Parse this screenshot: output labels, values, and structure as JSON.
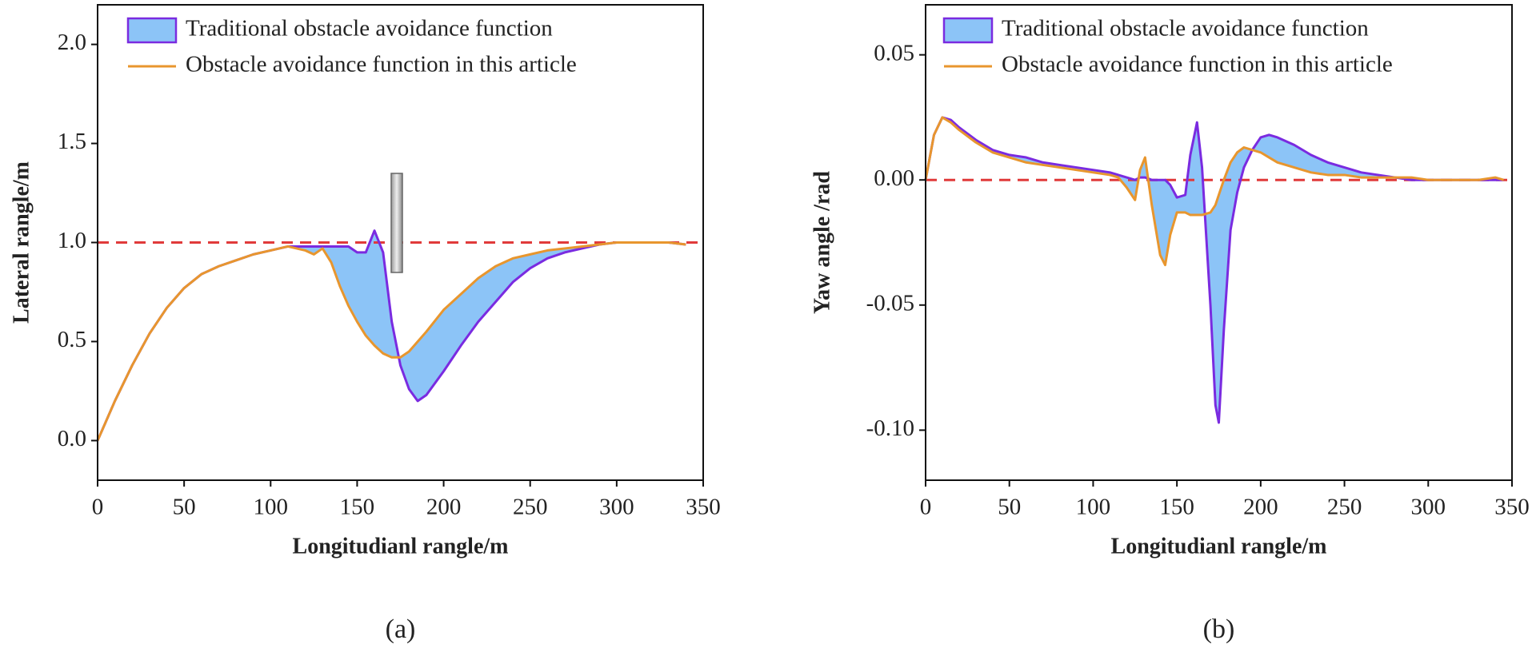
{
  "chart_data": [
    {
      "type": "line",
      "caption": "(a)",
      "xlabel": "Longitudianl rangle/m",
      "ylabel": "Lateral rangle/m",
      "x": [
        0,
        10,
        20,
        30,
        40,
        50,
        60,
        70,
        80,
        90,
        100,
        110,
        120,
        125,
        130,
        135,
        140,
        145,
        150,
        155,
        160,
        165,
        170,
        175,
        180,
        185,
        190,
        200,
        210,
        220,
        230,
        240,
        250,
        260,
        270,
        280,
        290,
        300,
        310,
        320,
        330,
        340
      ],
      "series": [
        {
          "name": "Traditional obstacle avoidance function",
          "color": "#7a2be0",
          "fill": "#8cc4f7",
          "values": [
            0,
            0.2,
            0.38,
            0.54,
            0.67,
            0.77,
            0.84,
            0.88,
            0.91,
            0.94,
            0.96,
            0.98,
            0.98,
            0.98,
            0.98,
            0.98,
            0.98,
            0.98,
            0.95,
            0.95,
            1.06,
            0.95,
            0.6,
            0.38,
            0.26,
            0.2,
            0.23,
            0.35,
            0.48,
            0.6,
            0.7,
            0.8,
            0.87,
            0.92,
            0.95,
            0.97,
            0.99,
            1.0,
            1.0,
            1.0,
            1.0,
            0.99
          ]
        },
        {
          "name": "Obstacle avoidance function in this article",
          "color": "#e8962e",
          "values": [
            0,
            0.2,
            0.38,
            0.54,
            0.67,
            0.77,
            0.84,
            0.88,
            0.91,
            0.94,
            0.96,
            0.98,
            0.96,
            0.94,
            0.97,
            0.9,
            0.78,
            0.68,
            0.6,
            0.53,
            0.48,
            0.44,
            0.42,
            0.42,
            0.45,
            0.5,
            0.55,
            0.66,
            0.74,
            0.82,
            0.88,
            0.92,
            0.94,
            0.96,
            0.97,
            0.98,
            0.99,
            1.0,
            1.0,
            1.0,
            1.0,
            0.99
          ]
        }
      ],
      "reference_line": 1,
      "reference_color": "#e03a3a",
      "fill_between": true,
      "xlim": [
        0,
        350
      ],
      "xticks": [
        0,
        50,
        100,
        150,
        200,
        250,
        300,
        350
      ],
      "ylim": [
        -0.2,
        2.2
      ],
      "yticks": [
        {
          "value": 0,
          "label": "0.0"
        },
        0.5,
        {
          "value": 1,
          "label": "1.0"
        },
        1.5,
        {
          "value": 2,
          "label": "2.0"
        }
      ],
      "legend": "upper left"
    },
    {
      "type": "line",
      "caption": "(b)",
      "xlabel": "Longitudianl rangle/m",
      "ylabel": "Yaw angle /rad",
      "x": [
        0,
        5,
        10,
        15,
        20,
        30,
        40,
        50,
        60,
        70,
        80,
        90,
        100,
        110,
        115,
        120,
        125,
        128,
        131,
        135,
        140,
        143,
        146,
        150,
        155,
        158,
        162,
        165,
        170,
        173,
        175,
        178,
        182,
        186,
        190,
        195,
        200,
        205,
        210,
        220,
        230,
        240,
        250,
        260,
        270,
        280,
        290,
        300,
        310,
        320,
        330,
        340,
        345
      ],
      "series": [
        {
          "name": "Traditional obstacle avoidance function",
          "color": "#7a2be0",
          "fill": "#8cc4f7",
          "values": [
            0,
            0.018,
            0.025,
            0.024,
            0.021,
            0.016,
            0.012,
            0.01,
            0.009,
            0.007,
            0.006,
            0.005,
            0.004,
            0.003,
            0.002,
            0.001,
            0,
            0.001,
            0.001,
            0,
            0,
            0,
            -0.002,
            -0.007,
            -0.006,
            0.01,
            0.023,
            0.005,
            -0.05,
            -0.09,
            -0.097,
            -0.06,
            -0.02,
            -0.005,
            0.005,
            0.012,
            0.017,
            0.018,
            0.017,
            0.014,
            0.01,
            0.007,
            0.005,
            0.003,
            0.002,
            0.001,
            0,
            0,
            0,
            0,
            0,
            0,
            0
          ]
        },
        {
          "name": "Obstacle avoidance function in this article",
          "color": "#e8962e",
          "values": [
            0,
            0.018,
            0.025,
            0.023,
            0.02,
            0.015,
            0.011,
            0.009,
            0.007,
            0.006,
            0.005,
            0.004,
            0.003,
            0.002,
            0.001,
            -0.003,
            -0.008,
            0.004,
            0.009,
            -0.01,
            -0.03,
            -0.034,
            -0.022,
            -0.013,
            -0.013,
            -0.014,
            -0.014,
            -0.014,
            -0.013,
            -0.01,
            -0.006,
            0,
            0.007,
            0.011,
            0.013,
            0.012,
            0.011,
            0.009,
            0.007,
            0.005,
            0.003,
            0.002,
            0.002,
            0.001,
            0.001,
            0.001,
            0.001,
            0,
            0,
            0,
            0,
            0.001,
            0
          ]
        }
      ],
      "reference_line": 0,
      "reference_color": "#e03a3a",
      "fill_between": true,
      "xlim": [
        0,
        350
      ],
      "xticks": [
        0,
        50,
        100,
        150,
        200,
        250,
        300,
        350
      ],
      "ylim": [
        -0.12,
        0.07
      ],
      "yticks": [
        {
          "value": -0.1,
          "label": "-0.10"
        },
        -0.05,
        {
          "value": 0,
          "label": "0.00"
        },
        0.05
      ],
      "legend": "upper left"
    }
  ]
}
